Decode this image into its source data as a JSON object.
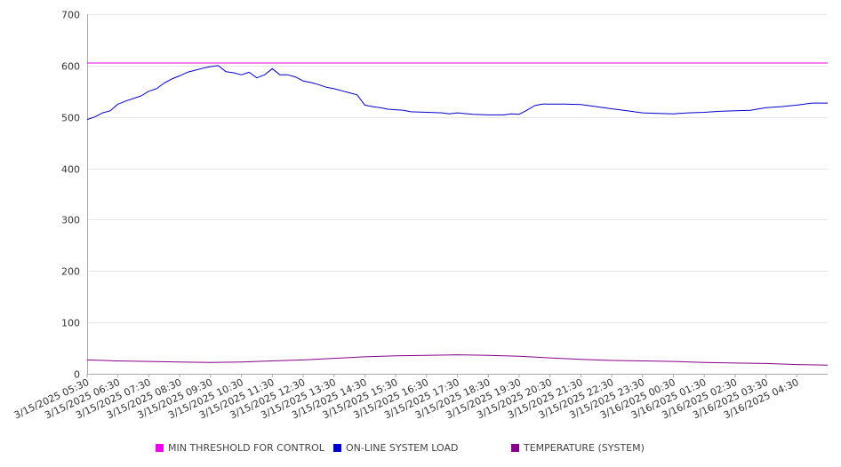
{
  "chart_data": {
    "type": "line",
    "title": "",
    "xlabel": "",
    "ylabel": "",
    "ylim": [
      0,
      700
    ],
    "yticks": [
      0,
      100,
      200,
      300,
      400,
      500,
      600,
      700
    ],
    "grid": true,
    "legend_position": "bottom",
    "x_tick_labels": [
      "3/15/2025 05:30",
      "3/15/2025 06:30",
      "3/15/2025 07:30",
      "3/15/2025 08:30",
      "3/15/2025 09:30",
      "3/15/2025 10:30",
      "3/15/2025 11:30",
      "3/15/2025 12:30",
      "3/15/2025 13:30",
      "3/15/2025 14:30",
      "3/15/2025 15:30",
      "3/15/2025 16:30",
      "3/15/2025 17:30",
      "3/15/2025 18:30",
      "3/15/2025 19:30",
      "3/15/2025 20:30",
      "3/15/2025 21:30",
      "3/15/2025 22:30",
      "3/15/2025 23:30",
      "3/16/2025 00:30",
      "3/16/2025 01:30",
      "3/16/2025 02:30",
      "3/16/2025 03:30",
      "3/16/2025 04:30"
    ],
    "x_range": [
      "3/15/2025 05:30",
      "3/16/2025 05:30"
    ],
    "series": [
      {
        "name": "MIN THRESHOLD FOR CONTROL",
        "color": "#ee00ee",
        "points": [
          [
            "3/15/2025 05:30",
            605
          ],
          [
            "3/16/2025 05:30",
            605
          ]
        ]
      },
      {
        "name": "ON-LINE SYSTEM LOAD",
        "color": "#0000cc",
        "points": [
          [
            "3/15/2025 05:30",
            495
          ],
          [
            "3/15/2025 05:45",
            500
          ],
          [
            "3/15/2025 06:00",
            508
          ],
          [
            "3/15/2025 06:15",
            512
          ],
          [
            "3/15/2025 06:30",
            525
          ],
          [
            "3/15/2025 06:45",
            531
          ],
          [
            "3/15/2025 07:00",
            536
          ],
          [
            "3/15/2025 07:15",
            541
          ],
          [
            "3/15/2025 07:30",
            550
          ],
          [
            "3/15/2025 07:45",
            555
          ],
          [
            "3/15/2025 08:00",
            566
          ],
          [
            "3/15/2025 08:15",
            574
          ],
          [
            "3/15/2025 08:30",
            580
          ],
          [
            "3/15/2025 08:45",
            587
          ],
          [
            "3/15/2025 09:00",
            591
          ],
          [
            "3/15/2025 09:15",
            595
          ],
          [
            "3/15/2025 09:30",
            598
          ],
          [
            "3/15/2025 09:45",
            600
          ],
          [
            "3/15/2025 10:00",
            588
          ],
          [
            "3/15/2025 10:15",
            586
          ],
          [
            "3/15/2025 10:30",
            582
          ],
          [
            "3/15/2025 10:45",
            587
          ],
          [
            "3/15/2025 11:00",
            576
          ],
          [
            "3/15/2025 11:15",
            582
          ],
          [
            "3/15/2025 11:30",
            594
          ],
          [
            "3/15/2025 11:45",
            582
          ],
          [
            "3/15/2025 12:00",
            582
          ],
          [
            "3/15/2025 12:15",
            578
          ],
          [
            "3/15/2025 12:30",
            570
          ],
          [
            "3/15/2025 12:45",
            567
          ],
          [
            "3/15/2025 13:00",
            563
          ],
          [
            "3/15/2025 13:15",
            558
          ],
          [
            "3/15/2025 13:30",
            555
          ],
          [
            "3/15/2025 13:45",
            551
          ],
          [
            "3/15/2025 14:00",
            547
          ],
          [
            "3/15/2025 14:15",
            543
          ],
          [
            "3/15/2025 14:30",
            523
          ],
          [
            "3/15/2025 14:45",
            520
          ],
          [
            "3/15/2025 15:00",
            518
          ],
          [
            "3/15/2025 15:15",
            515
          ],
          [
            "3/15/2025 15:30",
            514
          ],
          [
            "3/15/2025 15:45",
            513
          ],
          [
            "3/15/2025 16:00",
            510
          ],
          [
            "3/15/2025 16:30",
            509
          ],
          [
            "3/15/2025 17:00",
            508
          ],
          [
            "3/15/2025 17:15",
            506
          ],
          [
            "3/15/2025 17:30",
            508
          ],
          [
            "3/15/2025 18:00",
            505
          ],
          [
            "3/15/2025 18:30",
            504
          ],
          [
            "3/15/2025 19:00",
            504
          ],
          [
            "3/15/2025 19:15",
            506
          ],
          [
            "3/15/2025 19:30",
            505
          ],
          [
            "3/15/2025 19:45",
            513
          ],
          [
            "3/15/2025 20:00",
            522
          ],
          [
            "3/15/2025 20:15",
            525
          ],
          [
            "3/15/2025 20:30",
            525
          ],
          [
            "3/15/2025 21:00",
            525
          ],
          [
            "3/15/2025 21:30",
            524
          ],
          [
            "3/15/2025 22:00",
            520
          ],
          [
            "3/15/2025 22:30",
            516
          ],
          [
            "3/15/2025 23:00",
            512
          ],
          [
            "3/15/2025 23:30",
            508
          ],
          [
            "3/16/2025 00:00",
            507
          ],
          [
            "3/16/2025 00:30",
            506
          ],
          [
            "3/16/2025 01:00",
            508
          ],
          [
            "3/16/2025 01:30",
            509
          ],
          [
            "3/16/2025 02:00",
            511
          ],
          [
            "3/16/2025 02:30",
            512
          ],
          [
            "3/16/2025 03:00",
            513
          ],
          [
            "3/16/2025 03:30",
            518
          ],
          [
            "3/16/2025 04:00",
            520
          ],
          [
            "3/16/2025 04:30",
            523
          ],
          [
            "3/16/2025 05:00",
            527
          ],
          [
            "3/16/2025 05:30",
            527
          ]
        ]
      },
      {
        "name": "TEMPERATURE (SYSTEM)",
        "color": "#880088",
        "points": [
          [
            "3/15/2025 05:30",
            27
          ],
          [
            "3/15/2025 06:30",
            25
          ],
          [
            "3/15/2025 07:30",
            24
          ],
          [
            "3/15/2025 08:30",
            23
          ],
          [
            "3/15/2025 09:30",
            22
          ],
          [
            "3/15/2025 10:30",
            23
          ],
          [
            "3/15/2025 11:30",
            25
          ],
          [
            "3/15/2025 12:30",
            27
          ],
          [
            "3/15/2025 13:30",
            30
          ],
          [
            "3/15/2025 14:30",
            33
          ],
          [
            "3/15/2025 15:30",
            35
          ],
          [
            "3/15/2025 16:30",
            36
          ],
          [
            "3/15/2025 17:30",
            37
          ],
          [
            "3/15/2025 18:30",
            36
          ],
          [
            "3/15/2025 19:30",
            34
          ],
          [
            "3/15/2025 20:30",
            31
          ],
          [
            "3/15/2025 21:30",
            28
          ],
          [
            "3/15/2025 22:30",
            26
          ],
          [
            "3/15/2025 23:30",
            25
          ],
          [
            "3/16/2025 00:30",
            24
          ],
          [
            "3/16/2025 01:30",
            22
          ],
          [
            "3/16/2025 02:30",
            21
          ],
          [
            "3/16/2025 03:30",
            20
          ],
          [
            "3/16/2025 04:30",
            18
          ],
          [
            "3/16/2025 05:30",
            17
          ]
        ]
      }
    ]
  }
}
